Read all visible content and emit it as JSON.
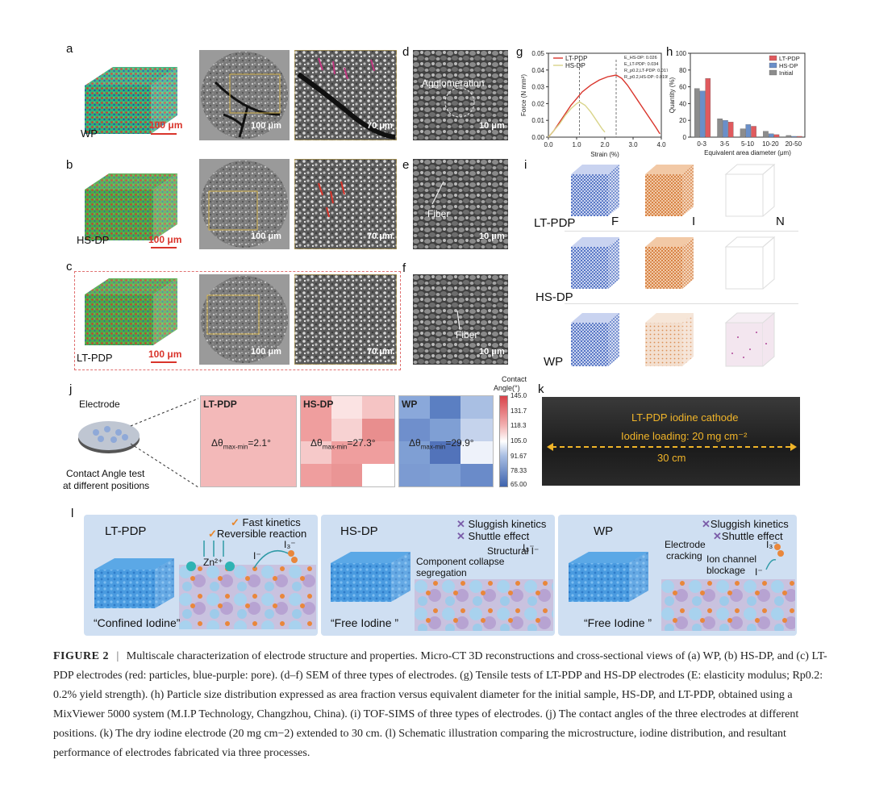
{
  "panels": {
    "a": "a",
    "b": "b",
    "c": "c",
    "d": "d",
    "e": "e",
    "f": "f",
    "g": "g",
    "h": "h",
    "i": "i",
    "j": "j",
    "k": "k",
    "l": "l"
  },
  "row_a": {
    "label": "WP",
    "scale_cube": "100 μm",
    "scale_micro": "100 μm",
    "scale_zoom": "70 μm",
    "sem_annotation": "Agglomeration",
    "sem_scale": "10 μm"
  },
  "row_b": {
    "label": "HS-DP",
    "scale_cube": "100 μm",
    "scale_micro": "100 μm",
    "scale_zoom": "70 μm",
    "sem_annotation": "Fiber",
    "sem_scale": "10 μm"
  },
  "row_c": {
    "label": "LT-PDP",
    "scale_cube": "100 μm",
    "scale_micro": "100 μm",
    "scale_zoom": "70 μm",
    "sem_annotation": "Fiber",
    "sem_scale": "10 μm"
  },
  "chart_data": [
    {
      "type": "line",
      "panel": "g",
      "title": "",
      "xlabel": "Strain (%)",
      "ylabel": "Force (N mm²)",
      "xlim": [
        0,
        4.0
      ],
      "ylim": [
        0,
        0.05
      ],
      "xticks": [
        "0.0",
        "1.0",
        "2.0",
        "3.0",
        "4.0"
      ],
      "yticks": [
        "0.00",
        "0.01",
        "0.02",
        "0.03",
        "0.04",
        "0.05"
      ],
      "legend": [
        "LT-PDP",
        "HS-DP"
      ],
      "annotations": [
        "E_HS-DP: 0.026",
        "E_LT-PDP: 0.034",
        "R_p0.2,LT-PDP: 0.0177",
        "R_p0.2,HS-DP: 0.0195"
      ],
      "series": [
        {
          "name": "LT-PDP",
          "color": "#d9342b",
          "x": [
            0,
            0.2,
            0.4,
            0.6,
            0.8,
            1.0,
            1.2,
            1.5,
            1.8,
            2.1,
            2.4,
            2.6,
            2.8,
            3.0,
            3.2,
            3.4,
            3.6,
            3.8,
            3.95
          ],
          "y": [
            0,
            0.004,
            0.009,
            0.014,
            0.019,
            0.023,
            0.027,
            0.031,
            0.034,
            0.036,
            0.037,
            0.035,
            0.031,
            0.026,
            0.021,
            0.016,
            0.011,
            0.006,
            0.002
          ]
        },
        {
          "name": "HS-DP",
          "color": "#d9d48a",
          "x": [
            0,
            0.2,
            0.4,
            0.6,
            0.8,
            1.0,
            1.1,
            1.3,
            1.5,
            1.7,
            1.9,
            2.0
          ],
          "y": [
            0,
            0.004,
            0.008,
            0.013,
            0.017,
            0.02,
            0.021,
            0.019,
            0.015,
            0.01,
            0.005,
            0.003
          ]
        }
      ],
      "markers_x": [
        1.1,
        2.4
      ]
    },
    {
      "type": "bar",
      "panel": "h",
      "xlabel": "Equivalent area diameter (μm)",
      "ylabel": "Quantity (%)",
      "ylim": [
        0,
        100
      ],
      "yticks": [
        "0",
        "20",
        "40",
        "60",
        "80",
        "100"
      ],
      "categories": [
        "0-3",
        "3-5",
        "5-10",
        "10-20",
        "20-50"
      ],
      "series": [
        {
          "name": "LT-PDP",
          "color": "#e05a5e",
          "values": [
            70,
            18,
            13,
            3,
            1
          ]
        },
        {
          "name": "HS-DP",
          "color": "#6a8fc9",
          "values": [
            55,
            20,
            15,
            4,
            1
          ]
        },
        {
          "name": "Initial",
          "color": "#8c8c8c",
          "values": [
            58,
            22,
            10,
            7,
            2
          ]
        }
      ],
      "legend_order": [
        "Initial",
        "HS-DP",
        "LT-PDP"
      ]
    }
  ],
  "panel_i": {
    "rows": [
      "LT-PDP",
      "HS-DP",
      "WP"
    ],
    "cols": [
      "F",
      "I",
      "N"
    ]
  },
  "panel_j": {
    "electrode_label": "Electrode",
    "test_label_1": "Contact Angle test",
    "test_label_2": "at different positions",
    "colorbar_title_1": "Contact",
    "colorbar_title_2": "Angle(°)",
    "colorbar_ticks": [
      "145.0",
      "131.7",
      "118.3",
      "105.0",
      "91.67",
      "78.33",
      "65.00"
    ],
    "boxes": [
      {
        "name": "LT-PDP",
        "delta_prefix": "Δθ",
        "delta_sub": "max-min",
        "delta_value": "=2.1°"
      },
      {
        "name": "HS-DP",
        "delta_prefix": "Δθ",
        "delta_sub": "max-min",
        "delta_value": "=27.3°"
      },
      {
        "name": "WP",
        "delta_prefix": "Δθ",
        "delta_sub": "max-min",
        "delta_value": "=29.9°"
      }
    ]
  },
  "panel_k": {
    "line1": "LT-PDP iodine cathode",
    "line2": "Iodine loading: 20 mg cm⁻²",
    "line3": "30 cm"
  },
  "panel_l": {
    "boxes": [
      {
        "title": "LT-PDP",
        "check1": "Fast kinetics",
        "check2": "Reversible reaction",
        "ion1": "Zn²⁺",
        "ion2": "I⁻",
        "ion3": "I₃⁻",
        "footer": "“Confined Iodine”"
      },
      {
        "title": "HS-DP",
        "x1": "Sluggish kinetics",
        "x2": "Shuttle effect",
        "ion1": "Structural I⁻",
        "ion2": "I₃⁻",
        "note1": "Component collapse",
        "note2": "segregation",
        "footer": "“Free Iodine ”"
      },
      {
        "title": "WP",
        "x1": "Sluggish kinetics",
        "x2": "Shuttle effect",
        "note1": "Electrode",
        "note2": "cracking",
        "note3": "Ion channel",
        "note4": "blockage",
        "ion1": "I₃⁻",
        "ion2": "I⁻",
        "footer": "“Free Iodine ”"
      }
    ]
  },
  "caption": {
    "label": "FIGURE  2",
    "sep": "|",
    "text": "Multiscale characterization of electrode structure and properties. Micro-CT 3D reconstructions and cross-sectional views of (a) WP, (b) HS-DP, and (c) LT-PDP electrodes (red: particles, blue-purple: pore). (d–f) SEM of three types of electrodes. (g) Tensile tests of LT-PDP and HS-DP electrodes (E: elasticity modulus; Rp0.2: 0.2% yield strength). (h) Particle size distribution expressed as area fraction versus equivalent diameter for the initial sample, HS-DP, and LT-PDP, obtained using a MixViewer 5000 system (M.I.P Technology, Changzhou, China). (i) TOF-SIMS of three types of electrodes. (j) The contact angles of the three electrodes at different positions. (k) The dry iodine electrode (20 mg cm−2) extended to 30 cm. (l) Schematic illustration comparing the microstructure, iodine distribution, and resultant performance of electrodes fabricated via three processes."
  },
  "colors": {
    "accent_red": "#d9342b",
    "accent_blue": "#3d63b8",
    "accent_orange": "#e8a03a"
  }
}
